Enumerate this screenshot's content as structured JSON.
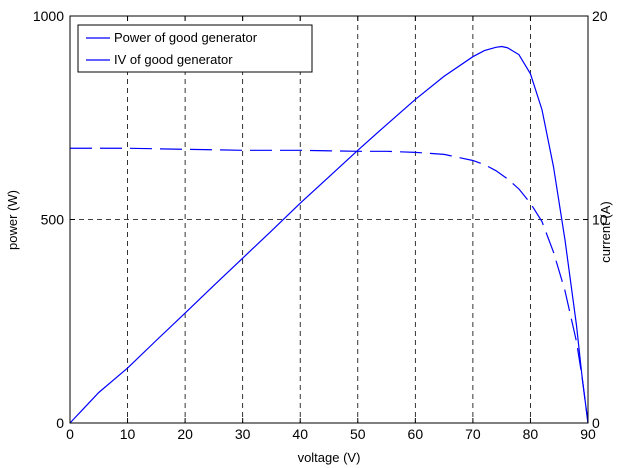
{
  "chart_data": {
    "type": "line",
    "xlabel": "voltage (V)",
    "ylabel": "power (W)",
    "y2label": "current (A)",
    "xlim": [
      0,
      90
    ],
    "ylim": [
      0,
      1000
    ],
    "y2lim": [
      0,
      20
    ],
    "xticks": [
      "0",
      "10",
      "20",
      "30",
      "40",
      "50",
      "60",
      "70",
      "80",
      "90"
    ],
    "yticks": [
      "0",
      "500",
      "1000"
    ],
    "y2ticks": [
      "0",
      "10",
      "20"
    ],
    "grid": true,
    "legend_position": "top-left",
    "series": [
      {
        "name": "Power of good generator",
        "axis": "left",
        "style": "solid",
        "color": "#0000ff",
        "x": [
          0,
          1,
          2,
          5,
          10,
          15,
          20,
          25,
          30,
          35,
          40,
          45,
          50,
          55,
          60,
          65,
          70,
          72,
          74,
          75,
          76,
          78,
          80,
          82,
          84,
          86,
          88,
          89,
          90
        ],
        "y": [
          0,
          15,
          30,
          75,
          135,
          203,
          270,
          338,
          405,
          472,
          540,
          605,
          670,
          733,
          795,
          852,
          900,
          915,
          923,
          925,
          922,
          905,
          858,
          770,
          630,
          450,
          240,
          110,
          0
        ]
      },
      {
        "name": "IV of good generator",
        "axis": "right",
        "style": "dashed",
        "color": "#0000ff",
        "x": [
          0,
          10,
          20,
          30,
          40,
          50,
          55,
          60,
          65,
          70,
          72,
          74,
          76,
          78,
          80,
          82,
          84,
          86,
          88,
          89,
          90
        ],
        "y": [
          13.5,
          13.5,
          13.45,
          13.4,
          13.4,
          13.35,
          13.35,
          13.3,
          13.2,
          12.9,
          12.7,
          12.4,
          12.0,
          11.5,
          10.8,
          9.9,
          8.4,
          6.5,
          4.0,
          2.2,
          0
        ]
      }
    ]
  }
}
